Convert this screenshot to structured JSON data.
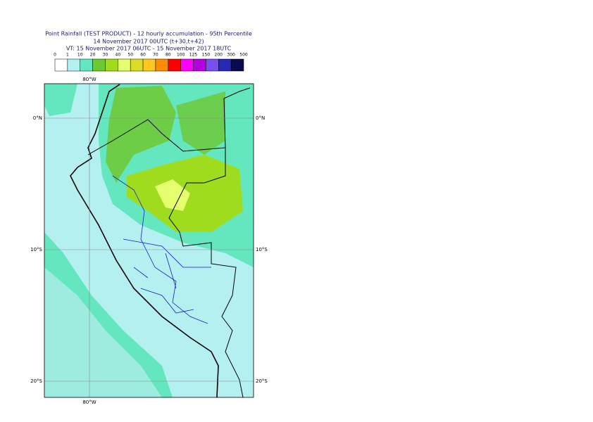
{
  "header": {
    "title": "Point Rainfall (TEST PRODUCT) - 12 hourly accumulation - 95th Percentile",
    "subtitle": "14 November 2017 00UTC (t+30,t+42)",
    "valid_time": "VT: 15 November 2017 06UTC - 15 November 2017 18UTC"
  },
  "legend": {
    "bounds": [
      0,
      1,
      10,
      20,
      30,
      40,
      50,
      60,
      70,
      80,
      100,
      125,
      150,
      200,
      300,
      500
    ],
    "colors": [
      "#ffffff",
      "#b4f0f0",
      "#64e6be",
      "#6ec832",
      "#a0dc1e",
      "#e6ff6e",
      "#dcdc28",
      "#ffc81e",
      "#ff8c00",
      "#ff0000",
      "#ff00ff",
      "#b400dc",
      "#7850f0",
      "#2828b4",
      "#0a0a50"
    ]
  },
  "map": {
    "lon_top": "80°W",
    "lon_bottom": "80°W",
    "lat_left": [
      "0°N",
      "10°S",
      "20°S"
    ],
    "lat_right": [
      "0°N",
      "10°S",
      "20°S"
    ]
  }
}
